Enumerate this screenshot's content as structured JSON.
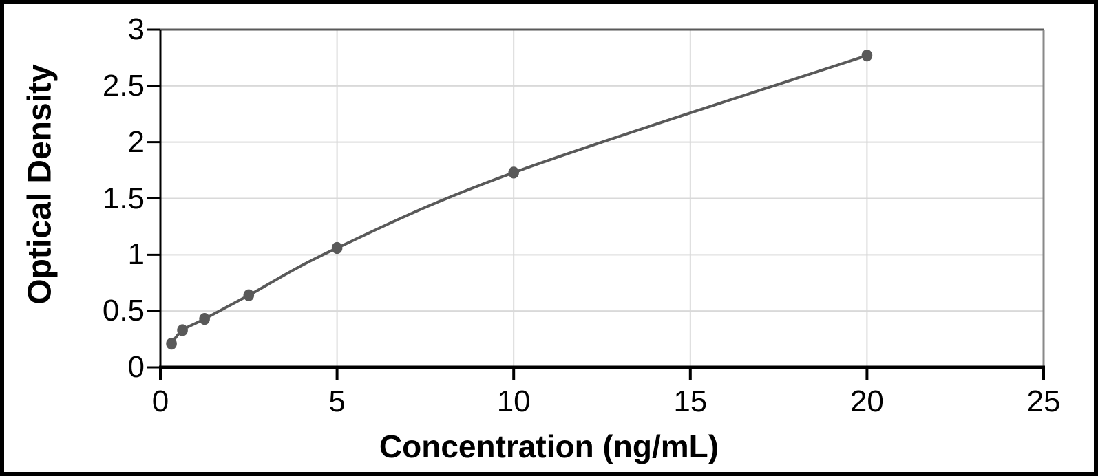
{
  "chart_data": {
    "type": "line",
    "title": "",
    "xlabel": "Concentration (ng/mL)",
    "ylabel": "Optical Density",
    "x": [
      0.313,
      0.625,
      1.25,
      2.5,
      5,
      10,
      20
    ],
    "y": [
      0.21,
      0.33,
      0.43,
      0.64,
      1.06,
      1.73,
      2.77
    ],
    "xlim": [
      0,
      25
    ],
    "ylim": [
      0,
      3
    ],
    "x_ticks": [
      0,
      5,
      10,
      15,
      20,
      25
    ],
    "x_tick_labels": [
      "0",
      "5",
      "10",
      "15",
      "20",
      "25"
    ],
    "y_ticks": [
      0,
      0.5,
      1,
      1.5,
      2,
      2.5,
      3
    ],
    "y_tick_labels": [
      "0",
      "0.5",
      "1",
      "1.5",
      "2",
      "2.5",
      "3"
    ],
    "grid": true,
    "legend": false,
    "marker": "circle",
    "line_style": "smooth"
  },
  "colors": {
    "series": "#595959",
    "marker": "#595959",
    "gridline": "#d9d9d9",
    "axis": "#000000",
    "plot_border_top": "#595959",
    "plot_border_right": "#898989",
    "frame": "#000000",
    "background": "#ffffff",
    "text": "#000000"
  }
}
